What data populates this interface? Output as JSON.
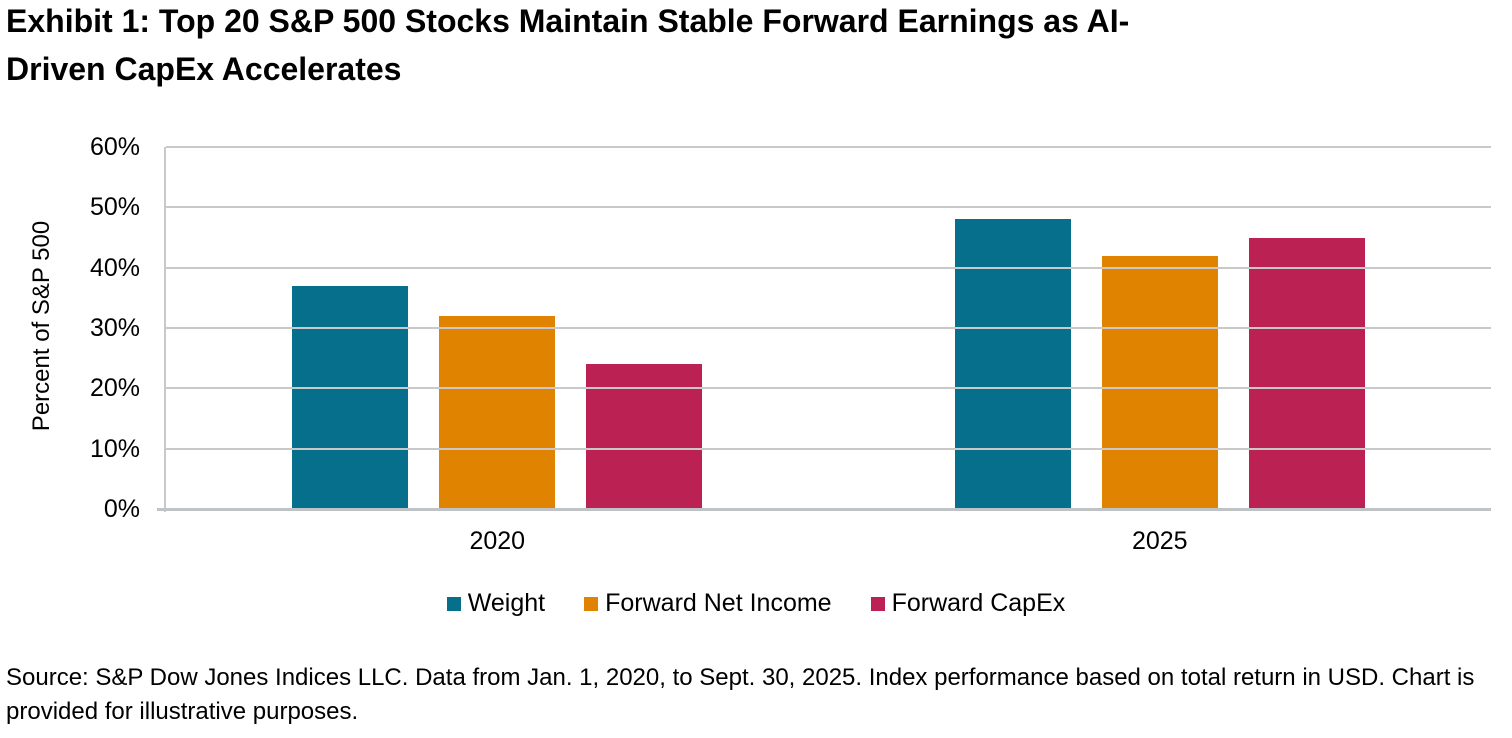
{
  "header": {
    "title_line1": "Exhibit 1: Top 20 S&P 500 Stocks Maintain Stable Forward Earnings as AI-",
    "title_line2": "Driven CapEx Accelerates"
  },
  "chart_data": {
    "type": "bar",
    "title": "Exhibit 1: Top 20 S&P 500 Stocks Maintain Stable Forward Earnings as AI-Driven CapEx Accelerates",
    "categories": [
      "2020",
      "2025"
    ],
    "series": [
      {
        "name": "Weight",
        "color": "#06708C",
        "values": [
          37,
          48
        ]
      },
      {
        "name": "Forward Net Income",
        "color": "#DF8300",
        "values": [
          32,
          42
        ]
      },
      {
        "name": "Forward CapEx",
        "color": "#BC2154",
        "values": [
          24,
          45
        ]
      }
    ],
    "xlabel": "",
    "ylabel": "Percent of S&P 500",
    "ylim": [
      0,
      60
    ],
    "ytick_step": 10,
    "ytick_suffix": "%",
    "grid": true,
    "legend_position": "bottom"
  },
  "footer": {
    "source": "Source: S&P Dow Jones Indices LLC. Data from Jan. 1, 2020, to Sept. 30, 2025. Index performance based on total return in USD. Chart is provided for illustrative purposes."
  }
}
